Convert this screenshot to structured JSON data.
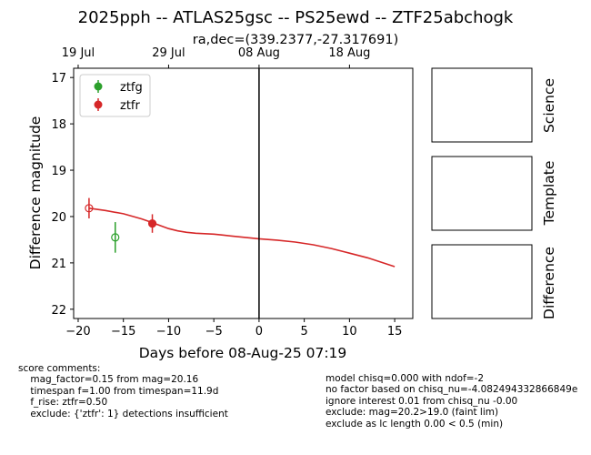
{
  "title": "2025pph -- ATLAS25gsc -- PS25ewd -- ZTF25abchogk",
  "subtitle": "ra,dec=(339.2377,-27.317691)",
  "chart_data": {
    "type": "scatter",
    "xlabel": "Days before 08-Aug-25 07:19",
    "ylabel": "Difference magnitude",
    "xlim": [
      -20.5,
      17
    ],
    "ylim": [
      22.2,
      16.8
    ],
    "y_inverted": true,
    "x_ticks": [
      -20,
      -15,
      -10,
      -5,
      0,
      5,
      10,
      15
    ],
    "x_tick_labels": [
      "−20",
      "−15",
      "−10",
      "−5",
      "0",
      "5",
      "10",
      "15"
    ],
    "y_ticks": [
      17,
      18,
      19,
      20,
      21,
      22
    ],
    "y_tick_labels": [
      "17",
      "18",
      "19",
      "20",
      "21",
      "22"
    ],
    "top_axis": {
      "ticks": [
        -20,
        -10,
        0,
        10
      ],
      "labels": [
        "19 Jul",
        "29 Jul",
        "08 Aug",
        "18 Aug"
      ]
    },
    "vline_x": 0,
    "legend": {
      "position": "top-left",
      "entries": [
        {
          "label": "ztfg",
          "color": "#2ca02c"
        },
        {
          "label": "ztfr",
          "color": "#d62728"
        }
      ]
    },
    "series": [
      {
        "name": "ztfg",
        "color": "#2ca02c",
        "points": [
          {
            "x": -15.9,
            "y": 20.45,
            "err": 0.33,
            "filled": false
          }
        ]
      },
      {
        "name": "ztfr",
        "color": "#d62728",
        "points": [
          {
            "x": -18.8,
            "y": 19.82,
            "err": 0.22,
            "filled": false
          },
          {
            "x": -11.8,
            "y": 20.15,
            "err": 0.2,
            "filled": true
          }
        ]
      }
    ],
    "model_curve": {
      "color": "#d62728",
      "x": [
        -18.8,
        -17,
        -15,
        -13,
        -11.8,
        -11,
        -10,
        -9,
        -8,
        -7,
        -6,
        -5,
        -4,
        -3,
        -2,
        -1,
        0,
        2,
        4,
        6,
        8,
        10,
        12,
        15
      ],
      "y": [
        19.82,
        19.87,
        19.94,
        20.05,
        20.13,
        20.19,
        20.26,
        20.31,
        20.34,
        20.36,
        20.37,
        20.38,
        20.4,
        20.42,
        20.44,
        20.46,
        20.48,
        20.51,
        20.55,
        20.61,
        20.69,
        20.79,
        20.89,
        21.08
      ]
    }
  },
  "panels": [
    {
      "label": "Science"
    },
    {
      "label": "Template"
    },
    {
      "label": "Difference"
    }
  ],
  "comments": {
    "left": [
      "score comments:",
      "    mag_factor=0.15 from mag=20.16",
      "    timespan f=1.00 from timespan=11.9d",
      "    f_rise: ztfr=0.50",
      "    exclude: {'ztfr': 1} detections insufficient"
    ],
    "right": [
      "model chisq=0.000 with ndof=-2",
      "no factor based on chisq_nu=-4.082494332866849e",
      "ignore interest 0.01 from chisq_nu -0.00",
      "exclude: mag=20.2>19.0 (faint lim)",
      "exclude as lc length 0.00 < 0.5 (min)"
    ]
  }
}
